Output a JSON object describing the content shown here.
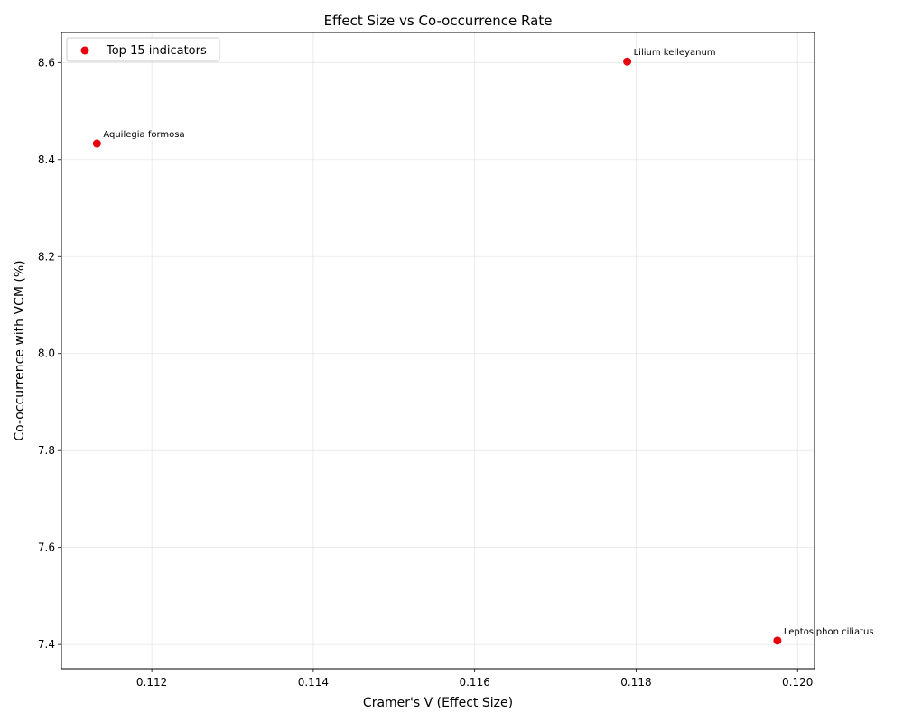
{
  "chart_data": {
    "type": "scatter",
    "title": "Effect Size vs Co-occurrence Rate",
    "xlabel": "Cramer's V (Effect Size)",
    "ylabel": "Co-occurrence with VCM (%)",
    "xlim": [
      0.11088,
      0.12021
    ],
    "ylim": [
      7.35,
      8.662
    ],
    "xticks": [
      0.112,
      0.114,
      0.116,
      0.118,
      0.12
    ],
    "xtick_labels": [
      "0.112",
      "0.114",
      "0.116",
      "0.118",
      "0.120"
    ],
    "yticks": [
      7.4,
      7.6,
      7.8,
      8.0,
      8.2,
      8.4,
      8.6
    ],
    "ytick_labels": [
      "7.4",
      "7.6",
      "7.8",
      "8.0",
      "8.2",
      "8.4",
      "8.6"
    ],
    "grid": true,
    "legend_position": "top-left",
    "series": [
      {
        "name": "Top 15 indicators",
        "color": "#e8000b",
        "points": [
          {
            "label": "Aquilegia formosa",
            "x": 0.11132,
            "y": 8.433
          },
          {
            "label": "Lilium kelleyanum",
            "x": 0.11789,
            "y": 8.602
          },
          {
            "label": "Leptosiphon ciliatus",
            "x": 0.11975,
            "y": 7.408
          }
        ]
      }
    ]
  }
}
